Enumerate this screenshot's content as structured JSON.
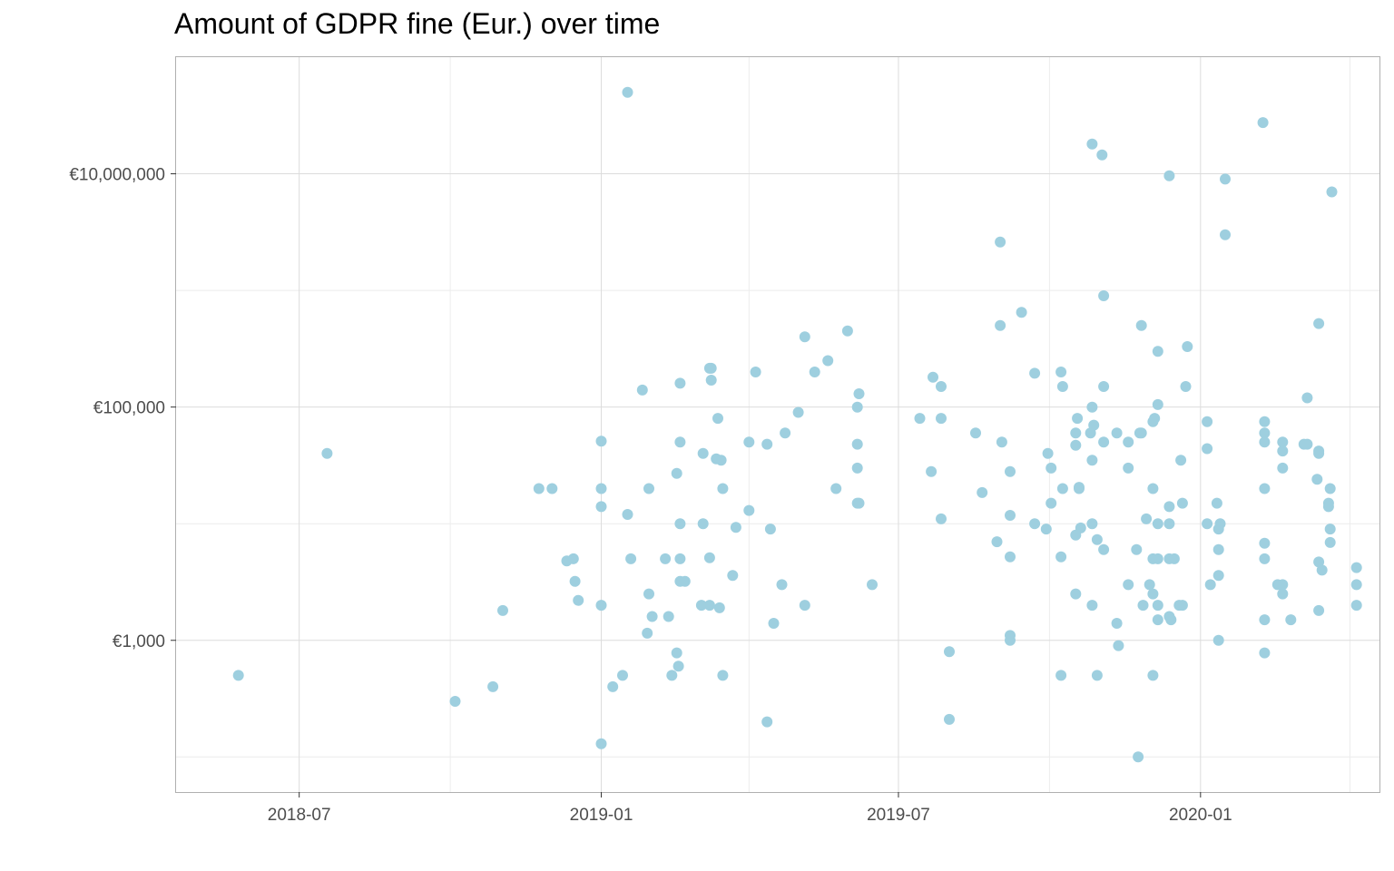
{
  "chart_data": {
    "type": "scatter",
    "title": "Amount of GDPR fine (Eur.) over time",
    "xlabel": "",
    "ylabel": "",
    "x_axis": {
      "type": "date",
      "range": [
        "2018-04-17",
        "2020-04-19"
      ],
      "major_ticks": [
        "2018-07",
        "2019-01",
        "2019-07",
        "2020-01"
      ]
    },
    "y_axis": {
      "scale": "log10",
      "range": [
        50,
        100000000
      ],
      "major_ticks": [
        1000,
        100000,
        10000000
      ],
      "tick_labels": [
        "€1,000",
        "€100,000",
        "€10,000,000"
      ]
    },
    "grid": true,
    "legend": "none",
    "colors": {
      "point": "#9ecfdf",
      "grid_major": "#dcdcdc",
      "grid_minor": "#ececec",
      "panel_border": "#b0b0b0",
      "tick_text": "#4d4d4d"
    },
    "points": [
      {
        "x": "2018-05-25",
        "y": 500
      },
      {
        "x": "2018-07-18",
        "y": 40000
      },
      {
        "x": "2018-10-04",
        "y": 300
      },
      {
        "x": "2018-10-27",
        "y": 400
      },
      {
        "x": "2018-11-02",
        "y": 1800
      },
      {
        "x": "2018-11-24",
        "y": 20000
      },
      {
        "x": "2018-12-02",
        "y": 20000
      },
      {
        "x": "2018-12-11",
        "y": 4800
      },
      {
        "x": "2018-12-15",
        "y": 5000
      },
      {
        "x": "2018-12-16",
        "y": 3200
      },
      {
        "x": "2018-12-18",
        "y": 2200
      },
      {
        "x": "2019-01-01",
        "y": 51000
      },
      {
        "x": "2019-01-01",
        "y": 20000
      },
      {
        "x": "2019-01-01",
        "y": 14000
      },
      {
        "x": "2019-01-01",
        "y": 2000
      },
      {
        "x": "2019-01-01",
        "y": 130
      },
      {
        "x": "2019-01-08",
        "y": 400
      },
      {
        "x": "2019-01-14",
        "y": 500
      },
      {
        "x": "2019-01-17",
        "y": 50000000
      },
      {
        "x": "2019-01-17",
        "y": 12000
      },
      {
        "x": "2019-01-19",
        "y": 5000
      },
      {
        "x": "2019-01-26",
        "y": 140000
      },
      {
        "x": "2019-01-29",
        "y": 1150
      },
      {
        "x": "2019-01-30",
        "y": 20000
      },
      {
        "x": "2019-01-30",
        "y": 2500
      },
      {
        "x": "2019-02-01",
        "y": 1600
      },
      {
        "x": "2019-02-09",
        "y": 5000
      },
      {
        "x": "2019-02-11",
        "y": 1600
      },
      {
        "x": "2019-02-13",
        "y": 500
      },
      {
        "x": "2019-02-16",
        "y": 27000
      },
      {
        "x": "2019-02-16",
        "y": 780
      },
      {
        "x": "2019-02-17",
        "y": 600
      },
      {
        "x": "2019-02-18",
        "y": 160000
      },
      {
        "x": "2019-02-18",
        "y": 50000
      },
      {
        "x": "2019-02-18",
        "y": 10000
      },
      {
        "x": "2019-02-18",
        "y": 5000
      },
      {
        "x": "2019-02-18",
        "y": 3200
      },
      {
        "x": "2019-02-21",
        "y": 3200
      },
      {
        "x": "2019-03-03",
        "y": 2000
      },
      {
        "x": "2019-03-04",
        "y": 10000
      },
      {
        "x": "2019-03-04",
        "y": 40000
      },
      {
        "x": "2019-03-08",
        "y": 215000
      },
      {
        "x": "2019-03-08",
        "y": 2000
      },
      {
        "x": "2019-03-08",
        "y": 5100
      },
      {
        "x": "2019-03-09",
        "y": 215000
      },
      {
        "x": "2019-03-09",
        "y": 170000
      },
      {
        "x": "2019-03-12",
        "y": 36000
      },
      {
        "x": "2019-03-13",
        "y": 80000
      },
      {
        "x": "2019-03-14",
        "y": 1900
      },
      {
        "x": "2019-03-15",
        "y": 35000
      },
      {
        "x": "2019-03-16",
        "y": 20000
      },
      {
        "x": "2019-03-16",
        "y": 500
      },
      {
        "x": "2019-03-22",
        "y": 3600
      },
      {
        "x": "2019-03-24",
        "y": 9300
      },
      {
        "x": "2019-04-01",
        "y": 13000
      },
      {
        "x": "2019-04-01",
        "y": 50000
      },
      {
        "x": "2019-04-05",
        "y": 200000
      },
      {
        "x": "2019-04-12",
        "y": 48000
      },
      {
        "x": "2019-04-12",
        "y": 200
      },
      {
        "x": "2019-04-14",
        "y": 9000
      },
      {
        "x": "2019-04-16",
        "y": 1400
      },
      {
        "x": "2019-04-21",
        "y": 3000
      },
      {
        "x": "2019-04-23",
        "y": 60000
      },
      {
        "x": "2019-05-01",
        "y": 90000
      },
      {
        "x": "2019-05-05",
        "y": 400000
      },
      {
        "x": "2019-05-05",
        "y": 2000
      },
      {
        "x": "2019-05-11",
        "y": 200000
      },
      {
        "x": "2019-05-19",
        "y": 250000
      },
      {
        "x": "2019-05-24",
        "y": 20000
      },
      {
        "x": "2019-05-31",
        "y": 450000
      },
      {
        "x": "2019-06-06",
        "y": 100000
      },
      {
        "x": "2019-06-06",
        "y": 48000
      },
      {
        "x": "2019-06-06",
        "y": 30000
      },
      {
        "x": "2019-06-06",
        "y": 15000
      },
      {
        "x": "2019-06-07",
        "y": 130000
      },
      {
        "x": "2019-06-07",
        "y": 15000
      },
      {
        "x": "2019-06-15",
        "y": 3000
      },
      {
        "x": "2019-07-14",
        "y": 80000
      },
      {
        "x": "2019-07-21",
        "y": 28000
      },
      {
        "x": "2019-07-22",
        "y": 180000
      },
      {
        "x": "2019-07-27",
        "y": 150000
      },
      {
        "x": "2019-07-27",
        "y": 80000
      },
      {
        "x": "2019-07-27",
        "y": 11000
      },
      {
        "x": "2019-08-01",
        "y": 800
      },
      {
        "x": "2019-08-01",
        "y": 210
      },
      {
        "x": "2019-08-17",
        "y": 60000
      },
      {
        "x": "2019-08-21",
        "y": 18500
      },
      {
        "x": "2019-08-30",
        "y": 7000
      },
      {
        "x": "2019-09-01",
        "y": 2600000
      },
      {
        "x": "2019-09-01",
        "y": 500000
      },
      {
        "x": "2019-09-02",
        "y": 50000
      },
      {
        "x": "2019-09-07",
        "y": 28000
      },
      {
        "x": "2019-09-07",
        "y": 11800
      },
      {
        "x": "2019-09-07",
        "y": 5200
      },
      {
        "x": "2019-09-07",
        "y": 1100
      },
      {
        "x": "2019-09-07",
        "y": 1000
      },
      {
        "x": "2019-09-14",
        "y": 650000
      },
      {
        "x": "2019-09-22",
        "y": 195000
      },
      {
        "x": "2019-09-22",
        "y": 10000
      },
      {
        "x": "2019-09-29",
        "y": 9000
      },
      {
        "x": "2019-09-30",
        "y": 40000
      },
      {
        "x": "2019-10-02",
        "y": 15000
      },
      {
        "x": "2019-10-02",
        "y": 30000
      },
      {
        "x": "2019-10-08",
        "y": 200000
      },
      {
        "x": "2019-10-08",
        "y": 5200
      },
      {
        "x": "2019-10-08",
        "y": 500
      },
      {
        "x": "2019-10-09",
        "y": 150000
      },
      {
        "x": "2019-10-09",
        "y": 20000
      },
      {
        "x": "2019-10-17",
        "y": 60000
      },
      {
        "x": "2019-10-17",
        "y": 47000
      },
      {
        "x": "2019-10-17",
        "y": 8000
      },
      {
        "x": "2019-10-17",
        "y": 2500
      },
      {
        "x": "2019-10-18",
        "y": 80000
      },
      {
        "x": "2019-10-19",
        "y": 20000
      },
      {
        "x": "2019-10-19",
        "y": 20500
      },
      {
        "x": "2019-10-20",
        "y": 9200
      },
      {
        "x": "2019-10-26",
        "y": 60000
      },
      {
        "x": "2019-10-27",
        "y": 18000000
      },
      {
        "x": "2019-10-27",
        "y": 100000
      },
      {
        "x": "2019-10-27",
        "y": 35000
      },
      {
        "x": "2019-10-27",
        "y": 10000
      },
      {
        "x": "2019-10-27",
        "y": 2000
      },
      {
        "x": "2019-10-28",
        "y": 70000
      },
      {
        "x": "2019-10-30",
        "y": 7300
      },
      {
        "x": "2019-10-30",
        "y": 500
      },
      {
        "x": "2019-11-02",
        "y": 14500000
      },
      {
        "x": "2019-11-03",
        "y": 900000
      },
      {
        "x": "2019-11-03",
        "y": 150000
      },
      {
        "x": "2019-11-03",
        "y": 50000
      },
      {
        "x": "2019-11-03",
        "y": 6000
      },
      {
        "x": "2019-11-11",
        "y": 60000
      },
      {
        "x": "2019-11-11",
        "y": 1400
      },
      {
        "x": "2019-11-12",
        "y": 900
      },
      {
        "x": "2019-11-18",
        "y": 50000
      },
      {
        "x": "2019-11-18",
        "y": 30000
      },
      {
        "x": "2019-11-18",
        "y": 3000
      },
      {
        "x": "2019-11-23",
        "y": 6000
      },
      {
        "x": "2019-11-24",
        "y": 100
      },
      {
        "x": "2019-11-25",
        "y": 60000
      },
      {
        "x": "2019-11-26",
        "y": 60000
      },
      {
        "x": "2019-11-26",
        "y": 500000
      },
      {
        "x": "2019-11-27",
        "y": 2000
      },
      {
        "x": "2019-11-29",
        "y": 11000
      },
      {
        "x": "2019-12-01",
        "y": 3000
      },
      {
        "x": "2019-12-03",
        "y": 5000
      },
      {
        "x": "2019-12-03",
        "y": 75000
      },
      {
        "x": "2019-12-03",
        "y": 20000
      },
      {
        "x": "2019-12-03",
        "y": 2500
      },
      {
        "x": "2019-12-03",
        "y": 500
      },
      {
        "x": "2019-12-04",
        "y": 80000
      },
      {
        "x": "2019-12-06",
        "y": 300000
      },
      {
        "x": "2019-12-06",
        "y": 105000
      },
      {
        "x": "2019-12-06",
        "y": 10000
      },
      {
        "x": "2019-12-06",
        "y": 5000
      },
      {
        "x": "2019-12-06",
        "y": 2000
      },
      {
        "x": "2019-12-06",
        "y": 1500
      },
      {
        "x": "2019-12-13",
        "y": 9600000
      },
      {
        "x": "2019-12-13",
        "y": 14000
      },
      {
        "x": "2019-12-13",
        "y": 10000
      },
      {
        "x": "2019-12-13",
        "y": 5000
      },
      {
        "x": "2019-12-13",
        "y": 1600
      },
      {
        "x": "2019-12-14",
        "y": 1500
      },
      {
        "x": "2019-12-16",
        "y": 5000
      },
      {
        "x": "2019-12-19",
        "y": 2000
      },
      {
        "x": "2019-12-20",
        "y": 35000
      },
      {
        "x": "2019-12-21",
        "y": 15000
      },
      {
        "x": "2019-12-21",
        "y": 2000
      },
      {
        "x": "2019-12-23",
        "y": 150000
      },
      {
        "x": "2019-12-24",
        "y": 330000
      },
      {
        "x": "2020-01-05",
        "y": 75000
      },
      {
        "x": "2020-01-05",
        "y": 44000
      },
      {
        "x": "2020-01-05",
        "y": 10000
      },
      {
        "x": "2020-01-07",
        "y": 3000
      },
      {
        "x": "2020-01-11",
        "y": 15000
      },
      {
        "x": "2020-01-12",
        "y": 9000
      },
      {
        "x": "2020-01-12",
        "y": 6000
      },
      {
        "x": "2020-01-12",
        "y": 3600
      },
      {
        "x": "2020-01-12",
        "y": 1000
      },
      {
        "x": "2020-01-13",
        "y": 10000
      },
      {
        "x": "2020-01-16",
        "y": 9000000
      },
      {
        "x": "2020-01-16",
        "y": 3000000
      },
      {
        "x": "2020-02-08",
        "y": 27500000
      },
      {
        "x": "2020-02-09",
        "y": 75000
      },
      {
        "x": "2020-02-09",
        "y": 60000
      },
      {
        "x": "2020-02-09",
        "y": 50000
      },
      {
        "x": "2020-02-09",
        "y": 20000
      },
      {
        "x": "2020-02-09",
        "y": 6800
      },
      {
        "x": "2020-02-09",
        "y": 5000
      },
      {
        "x": "2020-02-09",
        "y": 1500
      },
      {
        "x": "2020-02-09",
        "y": 780
      },
      {
        "x": "2020-02-17",
        "y": 3000
      },
      {
        "x": "2020-02-20",
        "y": 3000
      },
      {
        "x": "2020-02-20",
        "y": 50000
      },
      {
        "x": "2020-02-20",
        "y": 42000
      },
      {
        "x": "2020-02-20",
        "y": 30000
      },
      {
        "x": "2020-02-20",
        "y": 2500
      },
      {
        "x": "2020-02-25",
        "y": 1500
      },
      {
        "x": "2020-03-04",
        "y": 48000
      },
      {
        "x": "2020-03-06",
        "y": 120000
      },
      {
        "x": "2020-03-06",
        "y": 48000
      },
      {
        "x": "2020-03-12",
        "y": 24000
      },
      {
        "x": "2020-03-13",
        "y": 520000
      },
      {
        "x": "2020-03-13",
        "y": 42000
      },
      {
        "x": "2020-03-13",
        "y": 40000
      },
      {
        "x": "2020-03-13",
        "y": 4700
      },
      {
        "x": "2020-03-13",
        "y": 1800
      },
      {
        "x": "2020-03-15",
        "y": 4000
      },
      {
        "x": "2020-03-19",
        "y": 15000
      },
      {
        "x": "2020-03-19",
        "y": 14000
      },
      {
        "x": "2020-03-20",
        "y": 9000
      },
      {
        "x": "2020-03-20",
        "y": 6900
      },
      {
        "x": "2020-03-20",
        "y": 20000
      },
      {
        "x": "2020-03-21",
        "y": 7000000
      },
      {
        "x": "2020-04-05",
        "y": 4200
      },
      {
        "x": "2020-04-05",
        "y": 3000
      },
      {
        "x": "2020-04-05",
        "y": 2000
      }
    ]
  }
}
